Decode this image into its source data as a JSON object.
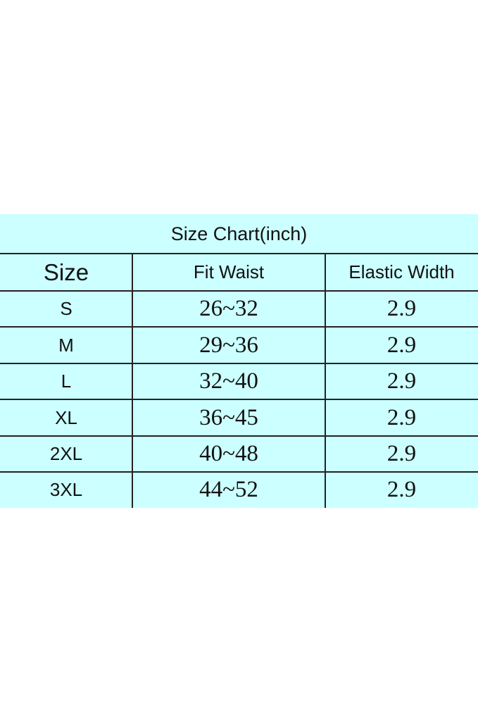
{
  "title": "Size Chart(inch)",
  "headers": [
    "Size",
    "Fit Waist",
    "Elastic Width"
  ],
  "rows": [
    [
      "S",
      "26~32",
      "2.9"
    ],
    [
      "M",
      "29~36",
      "2.9"
    ],
    [
      "L",
      "32~40",
      "2.9"
    ],
    [
      "XL",
      "36~45",
      "2.9"
    ],
    [
      "2XL",
      "40~48",
      "2.9"
    ],
    [
      "3XL",
      "44~52",
      "2.9"
    ]
  ],
  "colors": {
    "background": "#ccffff",
    "lines": "#222222"
  }
}
